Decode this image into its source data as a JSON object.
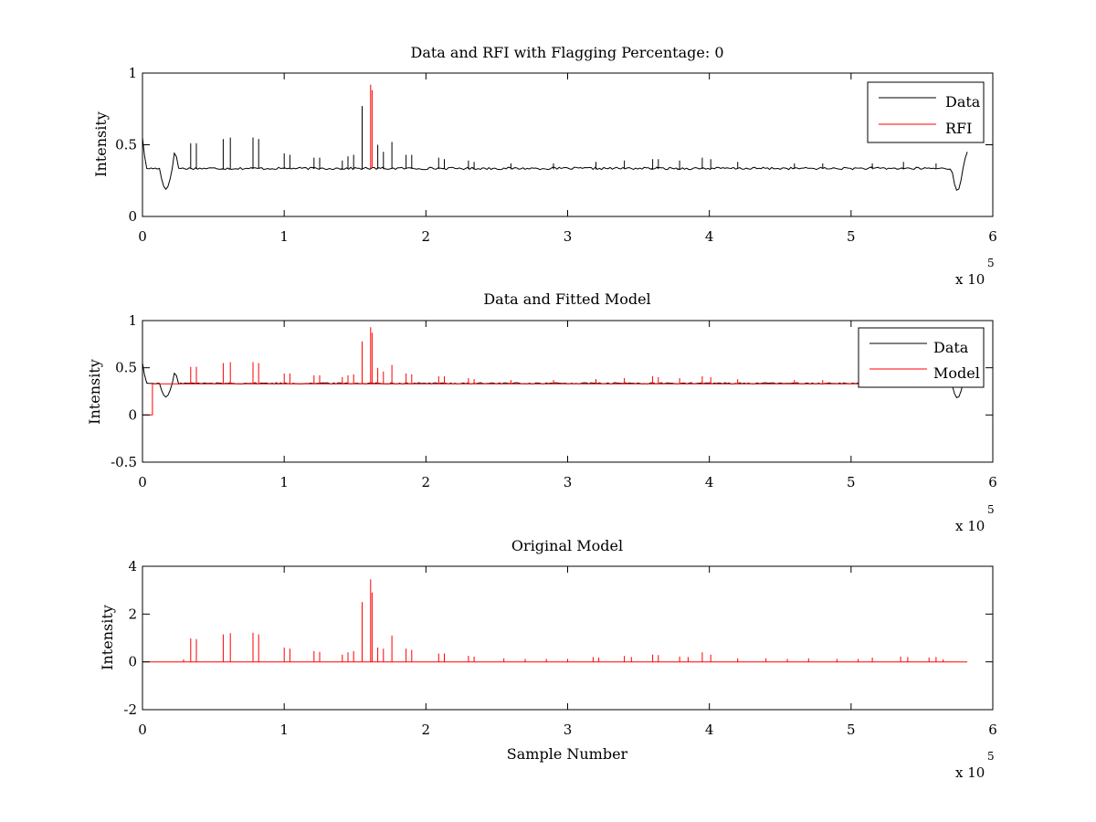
{
  "figure": {
    "background": "#ffffff"
  },
  "chart_data": [
    {
      "type": "line",
      "title": "Data and RFI with Flagging Percentage: 0",
      "xlabel": "",
      "ylabel": "Intensity",
      "xlim": [
        0,
        600000
      ],
      "ylim": [
        0,
        1
      ],
      "xticks": [
        0,
        100000,
        200000,
        300000,
        400000,
        500000,
        600000
      ],
      "xtick_labels": [
        "0",
        "1",
        "2",
        "3",
        "4",
        "5",
        "6"
      ],
      "yticks": [
        0,
        0.5,
        1
      ],
      "ytick_labels": [
        "0",
        "0.5",
        "1"
      ],
      "x_exponent": {
        "base": "x 10",
        "power": "5"
      },
      "legend": {
        "position": "top-right",
        "entries": [
          "Data",
          "RFI"
        ]
      },
      "series": [
        {
          "name": "Data",
          "color": "#000000",
          "baseline": 0.335,
          "noise": 0.008,
          "x_end": 583000,
          "edge_features": {
            "start_peak": 0.55,
            "dip_start": {
              "x": 17000,
              "y": 0.19
            },
            "bump": {
              "x": 23000,
              "y": 0.45
            },
            "dip_end": {
              "x": 576000,
              "y": 0.18
            },
            "end_peak": {
              "x": 581000,
              "y": 0.45
            }
          },
          "spikes": [
            [
              34000,
              0.51
            ],
            [
              38000,
              0.51
            ],
            [
              57000,
              0.54
            ],
            [
              62000,
              0.55
            ],
            [
              78000,
              0.55
            ],
            [
              82000,
              0.54
            ],
            [
              100000,
              0.44
            ],
            [
              104000,
              0.43
            ],
            [
              121000,
              0.41
            ],
            [
              125000,
              0.41
            ],
            [
              141000,
              0.39
            ],
            [
              145000,
              0.42
            ],
            [
              149000,
              0.43
            ],
            [
              155000,
              0.77
            ],
            [
              166000,
              0.5
            ],
            [
              170000,
              0.45
            ],
            [
              176000,
              0.52
            ],
            [
              186000,
              0.43
            ],
            [
              190000,
              0.43
            ],
            [
              209000,
              0.41
            ],
            [
              213000,
              0.4
            ],
            [
              230000,
              0.39
            ],
            [
              234000,
              0.38
            ],
            [
              260000,
              0.37
            ],
            [
              290000,
              0.37
            ],
            [
              320000,
              0.38
            ],
            [
              340000,
              0.39
            ],
            [
              360000,
              0.4
            ],
            [
              364000,
              0.4
            ],
            [
              379000,
              0.39
            ],
            [
              395000,
              0.41
            ],
            [
              401000,
              0.4
            ],
            [
              420000,
              0.38
            ],
            [
              460000,
              0.37
            ],
            [
              480000,
              0.37
            ],
            [
              515000,
              0.37
            ],
            [
              537000,
              0.38
            ],
            [
              560000,
              0.37
            ]
          ]
        },
        {
          "name": "RFI",
          "color": "#ff0000",
          "spikes": [
            [
              161000,
              0.92
            ],
            [
              162000,
              0.88
            ]
          ]
        }
      ]
    },
    {
      "type": "line",
      "title": "Data and Fitted Model",
      "xlabel": "",
      "ylabel": "Intensity",
      "xlim": [
        0,
        600000
      ],
      "ylim": [
        -0.5,
        1
      ],
      "xticks": [
        0,
        100000,
        200000,
        300000,
        400000,
        500000,
        600000
      ],
      "xtick_labels": [
        "0",
        "1",
        "2",
        "3",
        "4",
        "5",
        "6"
      ],
      "yticks": [
        -0.5,
        0,
        0.5,
        1
      ],
      "ytick_labels": [
        "-0.5",
        "0",
        "0.5",
        "1"
      ],
      "x_exponent": {
        "base": "x 10",
        "power": "5"
      },
      "legend": {
        "position": "top-right",
        "entries": [
          "Data",
          "Model"
        ]
      },
      "series": [
        {
          "name": "Data",
          "color": "#000000",
          "baseline": 0.335,
          "noise": 0.007,
          "x_end": 583000,
          "edge_features": {
            "start_peak": 0.55,
            "dip_start": {
              "x": 17000,
              "y": 0.19
            },
            "bump": {
              "x": 23000,
              "y": 0.45
            },
            "dip_end": {
              "x": 576000,
              "y": 0.18
            },
            "end_peak": {
              "x": 581000,
              "y": 0.45
            }
          },
          "spikes": []
        },
        {
          "name": "Model",
          "color": "#ff0000",
          "baseline": 0.33,
          "x_start": 7000,
          "x_end": 560000,
          "pre_segment": [
            [
              0,
              0.0
            ],
            [
              7000,
              0.0
            ],
            [
              7000,
              0.33
            ]
          ],
          "spikes": [
            [
              34000,
              0.51
            ],
            [
              38000,
              0.51
            ],
            [
              57000,
              0.55
            ],
            [
              62000,
              0.56
            ],
            [
              78000,
              0.56
            ],
            [
              82000,
              0.55
            ],
            [
              100000,
              0.44
            ],
            [
              104000,
              0.44
            ],
            [
              121000,
              0.42
            ],
            [
              125000,
              0.42
            ],
            [
              141000,
              0.4
            ],
            [
              145000,
              0.42
            ],
            [
              149000,
              0.43
            ],
            [
              155000,
              0.78
            ],
            [
              161000,
              0.93
            ],
            [
              162000,
              0.87
            ],
            [
              166000,
              0.5
            ],
            [
              170000,
              0.46
            ],
            [
              176000,
              0.53
            ],
            [
              186000,
              0.44
            ],
            [
              190000,
              0.43
            ],
            [
              209000,
              0.41
            ],
            [
              213000,
              0.41
            ],
            [
              230000,
              0.39
            ],
            [
              234000,
              0.38
            ],
            [
              260000,
              0.37
            ],
            [
              290000,
              0.37
            ],
            [
              320000,
              0.38
            ],
            [
              340000,
              0.39
            ],
            [
              360000,
              0.41
            ],
            [
              364000,
              0.4
            ],
            [
              379000,
              0.39
            ],
            [
              395000,
              0.41
            ],
            [
              401000,
              0.4
            ],
            [
              420000,
              0.38
            ],
            [
              460000,
              0.37
            ],
            [
              480000,
              0.37
            ],
            [
              515000,
              0.37
            ],
            [
              537000,
              0.38
            ],
            [
              560000,
              0.37
            ]
          ]
        }
      ]
    },
    {
      "type": "line",
      "title": "Original Model",
      "xlabel": "Sample Number",
      "ylabel": "Intensity",
      "xlim": [
        0,
        600000
      ],
      "ylim": [
        -2,
        4
      ],
      "xticks": [
        0,
        100000,
        200000,
        300000,
        400000,
        500000,
        600000
      ],
      "xtick_labels": [
        "0",
        "1",
        "2",
        "3",
        "4",
        "5",
        "6"
      ],
      "yticks": [
        -2,
        0,
        2,
        4
      ],
      "ytick_labels": [
        "-2",
        "0",
        "2",
        "4"
      ],
      "x_exponent": {
        "base": "x 10",
        "power": "5"
      },
      "series": [
        {
          "name": "",
          "color": "#ff0000",
          "baseline": 0.0,
          "x_start": 0,
          "x_end": 583000,
          "spikes": [
            [
              29000,
              0.1
            ],
            [
              34000,
              0.98
            ],
            [
              38000,
              0.95
            ],
            [
              57000,
              1.15
            ],
            [
              62000,
              1.2
            ],
            [
              78000,
              1.22
            ],
            [
              82000,
              1.15
            ],
            [
              100000,
              0.6
            ],
            [
              104000,
              0.55
            ],
            [
              121000,
              0.45
            ],
            [
              125000,
              0.42
            ],
            [
              141000,
              0.3
            ],
            [
              145000,
              0.4
            ],
            [
              149000,
              0.45
            ],
            [
              155000,
              2.5
            ],
            [
              161000,
              3.45
            ],
            [
              162000,
              2.9
            ],
            [
              166000,
              0.6
            ],
            [
              170000,
              0.55
            ],
            [
              176000,
              1.1
            ],
            [
              186000,
              0.55
            ],
            [
              190000,
              0.5
            ],
            [
              209000,
              0.35
            ],
            [
              213000,
              0.35
            ],
            [
              230000,
              0.25
            ],
            [
              234000,
              0.22
            ],
            [
              255000,
              0.15
            ],
            [
              270000,
              0.12
            ],
            [
              285000,
              0.12
            ],
            [
              300000,
              0.12
            ],
            [
              318000,
              0.2
            ],
            [
              322000,
              0.18
            ],
            [
              340000,
              0.25
            ],
            [
              345000,
              0.2
            ],
            [
              360000,
              0.3
            ],
            [
              364000,
              0.28
            ],
            [
              379000,
              0.22
            ],
            [
              385000,
              0.2
            ],
            [
              395000,
              0.4
            ],
            [
              401000,
              0.3
            ],
            [
              420000,
              0.15
            ],
            [
              440000,
              0.15
            ],
            [
              455000,
              0.12
            ],
            [
              470000,
              0.15
            ],
            [
              490000,
              0.12
            ],
            [
              505000,
              0.12
            ],
            [
              515000,
              0.18
            ],
            [
              535000,
              0.22
            ],
            [
              540000,
              0.2
            ],
            [
              555000,
              0.18
            ],
            [
              560000,
              0.2
            ],
            [
              565000,
              0.1
            ]
          ]
        }
      ]
    }
  ]
}
